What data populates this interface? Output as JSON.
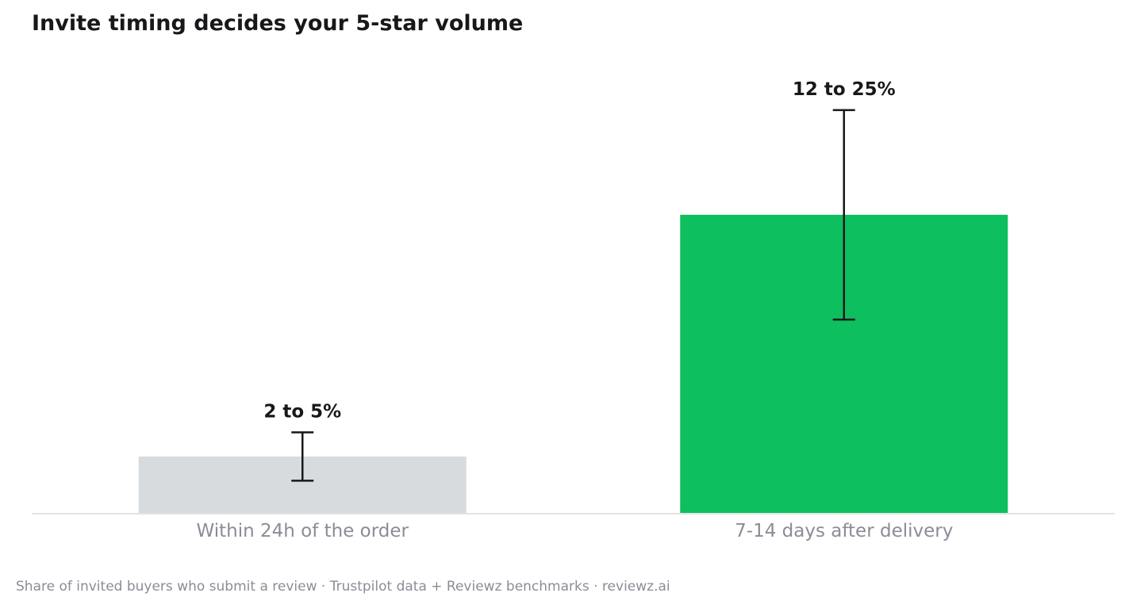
{
  "header": {
    "title": "Invite timing decides your 5-star volume"
  },
  "footer": {
    "caption": "Share of invited buyers who submit a review · Trustpilot data + Reviewz benchmarks · reviewz.ai"
  },
  "chart_data": {
    "type": "bar",
    "title": "Invite timing decides your 5-star volume",
    "xlabel": "",
    "ylabel": "",
    "ylim": [
      0,
      27.5
    ],
    "grid": false,
    "categories": [
      "Within 24h of the order",
      "7-14 days after delivery"
    ],
    "values": [
      3.5,
      18.5
    ],
    "ranges": [
      [
        2,
        5
      ],
      [
        12,
        25
      ]
    ],
    "data_labels": [
      "2 to 5%",
      "12 to 25%"
    ],
    "colors": [
      "#d8dbde",
      "#0dbf5e"
    ],
    "axis_color": "#e3e3e3",
    "errorbar_color": "#18181b"
  }
}
